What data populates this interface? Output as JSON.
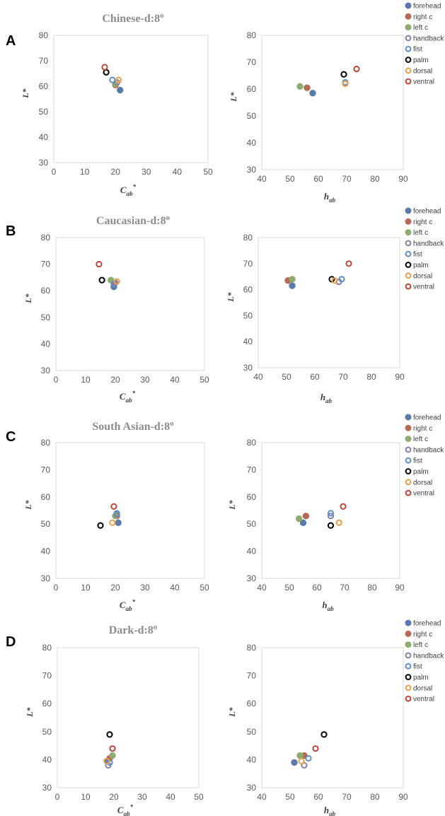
{
  "legend_labels": [
    "forehead",
    "right c",
    "left c",
    "handback",
    "fist",
    "palm",
    "dorsal",
    "ventral"
  ],
  "styles": [
    {
      "name": "forehead",
      "fill": "#5b7aab",
      "stroke": "#5b7aab",
      "hollow": false
    },
    {
      "name": "right c",
      "fill": "#b56b55",
      "stroke": "#b56b55",
      "hollow": false
    },
    {
      "name": "left c",
      "fill": "#8fac70",
      "stroke": "#8fac70",
      "hollow": false
    },
    {
      "name": "handback",
      "fill": "none",
      "stroke": "#8a7fa5",
      "hollow": true
    },
    {
      "name": "fist",
      "fill": "none",
      "stroke": "#5e8fc4",
      "hollow": true
    },
    {
      "name": "palm",
      "fill": "none",
      "stroke": "#000000",
      "hollow": true
    },
    {
      "name": "dorsal",
      "fill": "none",
      "stroke": "#e8a04e",
      "hollow": true
    },
    {
      "name": "ventral",
      "fill": "none",
      "stroke": "#b8483a",
      "hollow": true
    }
  ],
  "chart_data": [
    {
      "panel": "A",
      "title": "Chinese-d:8o",
      "title_main": "Chinese-d:8",
      "title_sup": "o",
      "type": "scatter",
      "xlabel_main": "C",
      "xlabel_sub": "ab",
      "xlabel_sup": "*",
      "ylabel": "L*",
      "xlim": [
        0,
        50
      ],
      "ylim": [
        30,
        80
      ],
      "xticks": [
        "0",
        "10",
        "20",
        "30",
        "40",
        "50"
      ],
      "yticks": [
        "30",
        "40",
        "50",
        "60",
        "70",
        "80"
      ],
      "points": [
        [
          21.5,
          58.5
        ],
        [
          20.0,
          60.5
        ],
        [
          20.0,
          61.0
        ],
        [
          20.5,
          61.5
        ],
        [
          19.0,
          62.5
        ],
        [
          17.0,
          65.5
        ],
        [
          21.0,
          62.5
        ],
        [
          16.5,
          67.5
        ]
      ]
    },
    {
      "panel": "A",
      "type": "scatter",
      "xlabel_main": "h",
      "xlabel_sub": "ab",
      "xlabel_sup": "",
      "ylabel": "L*",
      "xlim": [
        40,
        90
      ],
      "ylim": [
        30,
        80
      ],
      "xticks": [
        "40",
        "50",
        "60",
        "70",
        "80",
        "90"
      ],
      "yticks": [
        "30",
        "40",
        "50",
        "60",
        "70",
        "80"
      ],
      "points": [
        [
          58,
          58.5
        ],
        [
          56,
          60.5
        ],
        [
          53.5,
          61
        ],
        [
          69.5,
          62
        ],
        [
          69.5,
          62.5
        ],
        [
          69,
          65.5
        ],
        [
          69.5,
          62
        ],
        [
          73.5,
          67.5
        ]
      ]
    },
    {
      "panel": "B",
      "title": "Caucasian-d:8o",
      "title_main": "Caucasian-d:8",
      "title_sup": "o",
      "type": "scatter",
      "xlabel_main": "C",
      "xlabel_sub": "ab",
      "xlabel_sup": "*",
      "ylabel": "L*",
      "xlim": [
        0,
        50
      ],
      "ylim": [
        30,
        80
      ],
      "xticks": [
        "0",
        "10",
        "20",
        "30",
        "40",
        "50"
      ],
      "yticks": [
        "30",
        "40",
        "50",
        "60",
        "70",
        "80"
      ],
      "points": [
        [
          19.5,
          61.5
        ],
        [
          19.5,
          63.0
        ],
        [
          18.5,
          64.0
        ],
        [
          20.0,
          63.0
        ],
        [
          19.5,
          62.5
        ],
        [
          15.5,
          64.0
        ],
        [
          20.5,
          63.5
        ],
        [
          14.5,
          70.0
        ]
      ]
    },
    {
      "panel": "B",
      "type": "scatter",
      "xlabel_main": "h",
      "xlabel_sub": "ab",
      "xlabel_sup": "",
      "ylabel": "L*",
      "xlim": [
        40,
        90
      ],
      "ylim": [
        30,
        80
      ],
      "xticks": [
        "40",
        "50",
        "60",
        "70",
        "80",
        "90"
      ],
      "yticks": [
        "30",
        "40",
        "50",
        "60",
        "70",
        "80"
      ],
      "points": [
        [
          52,
          61.5
        ],
        [
          50.5,
          63.5
        ],
        [
          52,
          64
        ],
        [
          68.5,
          63
        ],
        [
          69.5,
          64
        ],
        [
          66,
          64
        ],
        [
          67,
          63.5
        ],
        [
          72,
          70
        ]
      ]
    },
    {
      "panel": "C",
      "title": "South Asian-d:8o",
      "title_main": "South Asian-d:8",
      "title_sup": "o",
      "type": "scatter",
      "xlabel_main": "C",
      "xlabel_sub": "ab",
      "xlabel_sup": "*",
      "ylabel": "L*",
      "xlim": [
        0,
        50
      ],
      "ylim": [
        30,
        80
      ],
      "xticks": [
        "0",
        "10",
        "20",
        "30",
        "40",
        "50"
      ],
      "yticks": [
        "30",
        "40",
        "50",
        "60",
        "70",
        "80"
      ],
      "points": [
        [
          21.0,
          50.5
        ],
        [
          20.5,
          53.0
        ],
        [
          20.0,
          53.0
        ],
        [
          20.5,
          53.5
        ],
        [
          20.5,
          54.0
        ],
        [
          15.0,
          49.5
        ],
        [
          19.0,
          50.5
        ],
        [
          19.5,
          56.5
        ]
      ]
    },
    {
      "panel": "C",
      "type": "scatter",
      "xlabel_main": "h",
      "xlabel_sub": "ab",
      "xlabel_sup": "",
      "ylabel": "L*",
      "xlim": [
        40,
        90
      ],
      "ylim": [
        30,
        80
      ],
      "xticks": [
        "40",
        "50",
        "60",
        "70",
        "80",
        "90"
      ],
      "yticks": [
        "30",
        "40",
        "50",
        "60",
        "70",
        "80"
      ],
      "points": [
        [
          55,
          50.5
        ],
        [
          56,
          53
        ],
        [
          53.5,
          52
        ],
        [
          65,
          53
        ],
        [
          65,
          54
        ],
        [
          65,
          49.5
        ],
        [
          68,
          50.5
        ],
        [
          69.5,
          56.5
        ]
      ]
    },
    {
      "panel": "D",
      "title": "Dark-d:8o",
      "title_main": "Dark-d:8",
      "title_sup": "o",
      "type": "scatter",
      "xlabel_main": "C",
      "xlabel_sub": "ab",
      "xlabel_sup": "*",
      "ylabel": "L*",
      "xlim": [
        0,
        50
      ],
      "ylim": [
        30,
        80
      ],
      "xticks": [
        "0",
        "10",
        "20",
        "30",
        "40",
        "50"
      ],
      "yticks": [
        "30",
        "40",
        "50",
        "60",
        "70",
        "80"
      ],
      "points": [
        [
          17.5,
          39.5
        ],
        [
          18.5,
          40.5
        ],
        [
          19.5,
          41.5
        ],
        [
          18.0,
          38.0
        ],
        [
          18.5,
          39.0
        ],
        [
          18.5,
          49.0
        ],
        [
          17.5,
          39.5
        ],
        [
          19.5,
          44.0
        ]
      ]
    },
    {
      "panel": "D",
      "type": "scatter",
      "xlabel_main": "h",
      "xlabel_sub": "ab",
      "xlabel_sup": "",
      "ylabel": "L*",
      "xlim": [
        40,
        90
      ],
      "ylim": [
        30,
        80
      ],
      "xticks": [
        "40",
        "50",
        "60",
        "70",
        "80",
        "90"
      ],
      "yticks": [
        "30",
        "40",
        "50",
        "60",
        "70",
        "80"
      ],
      "points": [
        [
          51.5,
          39
        ],
        [
          55,
          41.5
        ],
        [
          53.5,
          41.5
        ],
        [
          55,
          38
        ],
        [
          56.5,
          40.5
        ],
        [
          62,
          49
        ],
        [
          54,
          39.5
        ],
        [
          59,
          44
        ]
      ]
    }
  ]
}
